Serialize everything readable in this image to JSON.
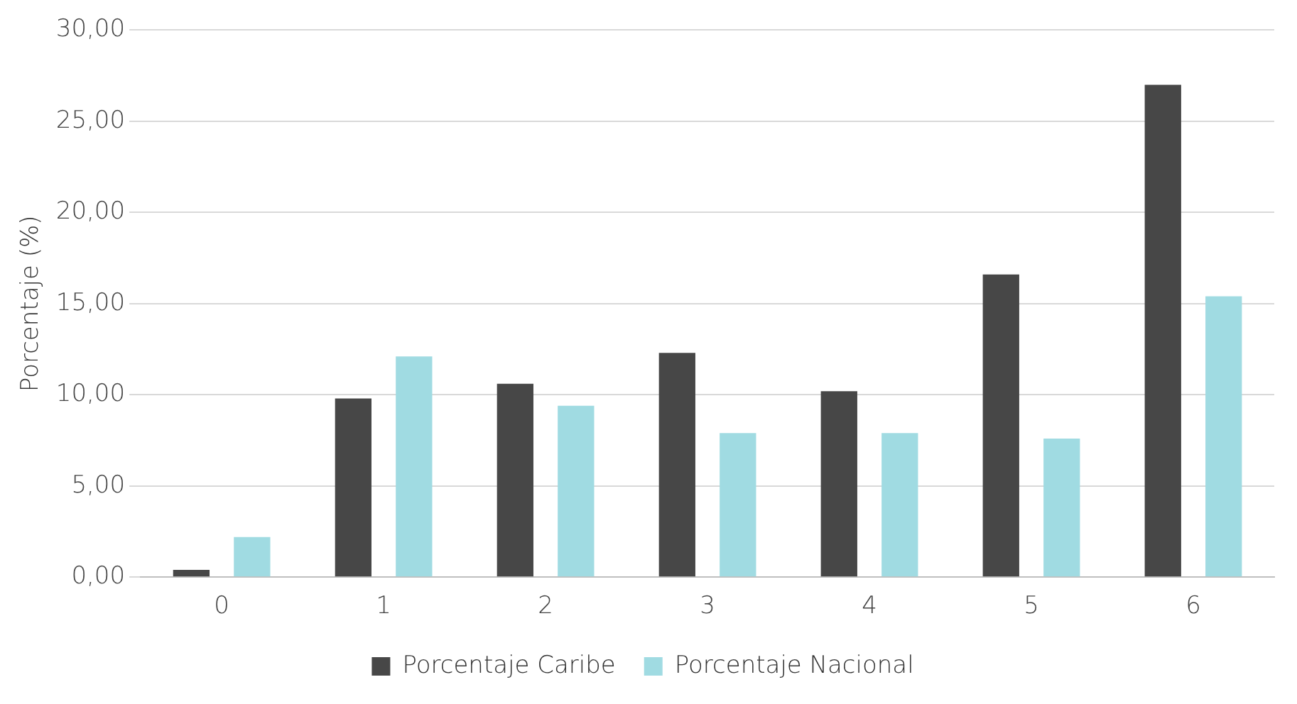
{
  "chart_data": {
    "type": "bar",
    "ylabel": "Porcentaje (%)",
    "categories": [
      "0",
      "1",
      "2",
      "3",
      "4",
      "5",
      "6"
    ],
    "series": [
      {
        "name": "Porcentaje Caribe",
        "color": "#474747",
        "values": [
          0.4,
          9.8,
          10.6,
          12.3,
          10.2,
          16.6,
          27.0
        ]
      },
      {
        "name": "Porcentaje Nacional",
        "color": "#a0dbe2",
        "values": [
          2.2,
          12.1,
          9.4,
          7.9,
          7.9,
          7.6,
          15.4
        ]
      }
    ],
    "ylim": [
      0,
      30
    ],
    "yticks": [
      {
        "value": 0,
        "label": "0,00"
      },
      {
        "value": 5,
        "label": "5,00"
      },
      {
        "value": 10,
        "label": "10,00"
      },
      {
        "value": 15,
        "label": "15,00"
      },
      {
        "value": 20,
        "label": "20,00"
      },
      {
        "value": 25,
        "label": "25,00"
      },
      {
        "value": 30,
        "label": "30,00"
      }
    ],
    "grid": "y",
    "legend": "bottom"
  }
}
